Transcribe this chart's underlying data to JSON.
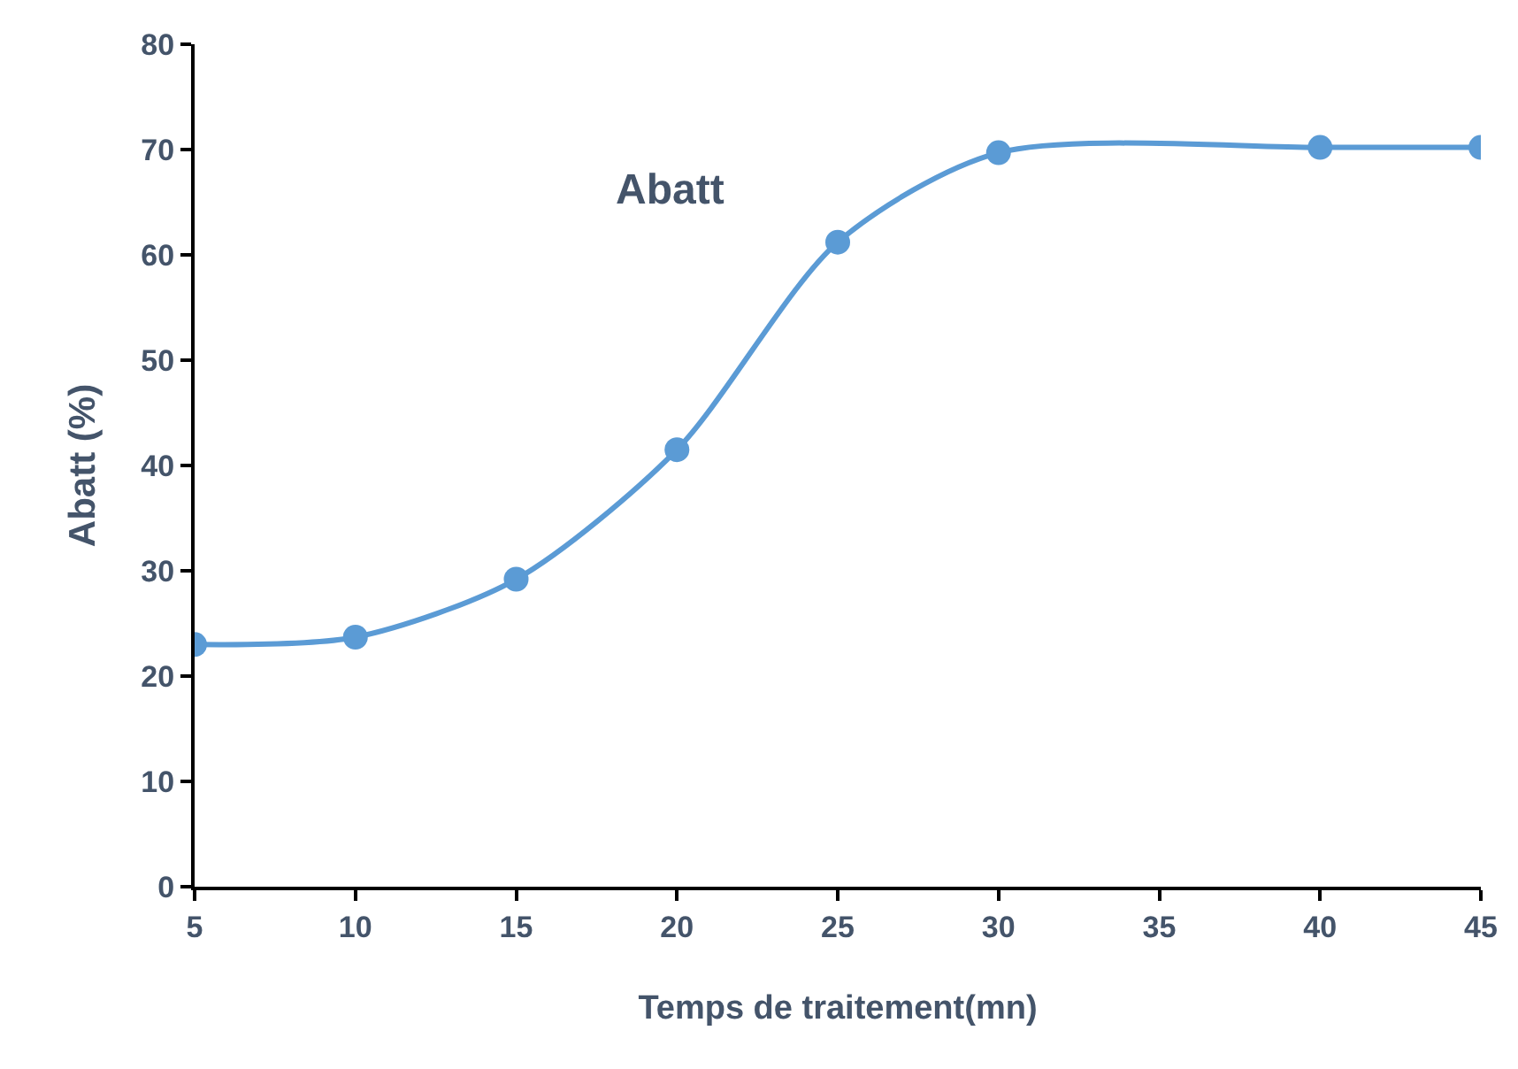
{
  "chart_data": {
    "type": "line",
    "xlabel": "Temps de traitement(mn)",
    "ylabel": "Abatt (%)",
    "x": [
      5,
      10,
      15,
      20,
      25,
      30,
      40,
      45
    ],
    "series": [
      {
        "name": "Abatt",
        "color": "#5b9bd5",
        "values": [
          23,
          23.7,
          29.2,
          41.5,
          61.2,
          69.7,
          70.2,
          70.2
        ]
      }
    ],
    "xlim": [
      5,
      45
    ],
    "xticks": [
      5,
      10,
      15,
      20,
      25,
      30,
      35,
      40,
      45
    ],
    "ylim": [
      0,
      80
    ],
    "yticks": [
      0,
      10,
      20,
      30,
      40,
      50,
      60,
      70,
      80
    ],
    "legend": false,
    "marker": "circle",
    "line_style": "solid"
  }
}
